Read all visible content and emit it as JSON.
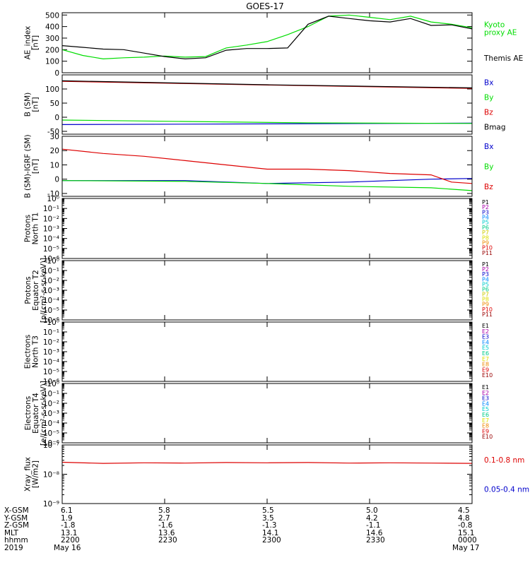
{
  "title": "GOES-17",
  "chart_data": [
    {
      "type": "line",
      "ylabel": [
        "AE_index",
        "[nT]"
      ],
      "ylim": [
        0,
        520
      ],
      "yticks": [
        0,
        100,
        200,
        300,
        400,
        500
      ],
      "log": false,
      "series": [
        {
          "name": "Kyoto\nproxy AE",
          "color": "#00dd00",
          "x": [
            0,
            0.05,
            0.1,
            0.15,
            0.2,
            0.25,
            0.3,
            0.35,
            0.4,
            0.45,
            0.5,
            0.55,
            0.6,
            0.65,
            0.7,
            0.75,
            0.8,
            0.85,
            0.9,
            0.95,
            1
          ],
          "y": [
            200,
            150,
            120,
            130,
            135,
            145,
            135,
            140,
            215,
            240,
            270,
            330,
            400,
            490,
            500,
            480,
            460,
            490,
            440,
            420,
            390
          ]
        },
        {
          "name": "Themis AE",
          "color": "#000000",
          "x": [
            0,
            0.05,
            0.1,
            0.15,
            0.2,
            0.25,
            0.3,
            0.35,
            0.4,
            0.45,
            0.5,
            0.55,
            0.6,
            0.65,
            0.7,
            0.75,
            0.8,
            0.85,
            0.9,
            0.95,
            1
          ],
          "y": [
            235,
            220,
            205,
            200,
            170,
            140,
            120,
            130,
            195,
            210,
            210,
            215,
            420,
            490,
            470,
            450,
            440,
            470,
            410,
            415,
            380
          ]
        }
      ]
    },
    {
      "type": "line",
      "ylabel": [
        "B (SM)",
        "[nT]"
      ],
      "ylim": [
        -60,
        150
      ],
      "yticks": [
        -50,
        0,
        50,
        100
      ],
      "log": false,
      "series": [
        {
          "name": "Bx",
          "color": "#0000cc",
          "x": [
            0,
            1
          ],
          "y": [
            -26,
            -21
          ]
        },
        {
          "name": "By",
          "color": "#00dd00",
          "x": [
            0,
            0.3,
            0.6,
            1
          ],
          "y": [
            -10,
            -15,
            -20,
            -22
          ]
        },
        {
          "name": "Bz",
          "color": "#dd0000",
          "x": [
            0,
            0.5,
            1
          ],
          "y": [
            127,
            114,
            102
          ]
        },
        {
          "name": "Bmag",
          "color": "#000000",
          "x": [
            0,
            0.5,
            1
          ],
          "y": [
            129,
            115,
            104
          ]
        }
      ]
    },
    {
      "type": "line",
      "ylabel": [
        "B (SM)-IGRF (SM)",
        "[nT]"
      ],
      "ylim": [
        -12,
        30
      ],
      "yticks": [
        -10,
        0,
        10,
        20,
        30
      ],
      "log": false,
      "series": [
        {
          "name": "Bx",
          "color": "#0000cc",
          "x": [
            0,
            0.3,
            0.5,
            0.7,
            0.9,
            1
          ],
          "y": [
            -1,
            -1,
            -3,
            -2,
            0,
            0.5
          ]
        },
        {
          "name": "By",
          "color": "#00dd00",
          "x": [
            0,
            0.3,
            0.5,
            0.7,
            0.9,
            1
          ],
          "y": [
            -1,
            -1.5,
            -3,
            -5,
            -6,
            -8
          ]
        },
        {
          "name": "Bz",
          "color": "#dd0000",
          "x": [
            0,
            0.1,
            0.2,
            0.3,
            0.4,
            0.5,
            0.6,
            0.7,
            0.8,
            0.9,
            0.95,
            1
          ],
          "y": [
            21,
            18,
            16,
            13,
            10,
            7,
            7,
            6,
            4,
            3,
            -2,
            -3
          ]
        }
      ]
    },
    {
      "type": "line",
      "ylabel": [
        "Protons",
        "North T1"
      ],
      "ylim": [
        -6,
        0
      ],
      "yticks": [
        0,
        -1,
        -2,
        -3,
        -4,
        -5,
        -6
      ],
      "log": true,
      "series": [
        {
          "name": "P1",
          "color": "#000000"
        },
        {
          "name": "P2",
          "color": "#aa00aa"
        },
        {
          "name": "P3",
          "color": "#0000cc"
        },
        {
          "name": "P4",
          "color": "#0088ff"
        },
        {
          "name": "P5",
          "color": "#00cccc"
        },
        {
          "name": "P6",
          "color": "#00cc88"
        },
        {
          "name": "P7",
          "color": "#cccc00"
        },
        {
          "name": "P8",
          "color": "#dddd00"
        },
        {
          "name": "P9",
          "color": "#ee8800"
        },
        {
          "name": "P10",
          "color": "#dd0000"
        },
        {
          "name": "P11",
          "color": "#990000"
        }
      ]
    },
    {
      "type": "line",
      "ylabel": [
        "Protons",
        "Equator T2",
        "[p/(cm²-s-sr-keV)]"
      ],
      "ylim": [
        -6,
        0
      ],
      "yticks": [
        0,
        -1,
        -2,
        -3,
        -4,
        -5,
        -6
      ],
      "log": true,
      "series": [
        {
          "name": "P1",
          "color": "#000000"
        },
        {
          "name": "P2",
          "color": "#aa00aa"
        },
        {
          "name": "P3",
          "color": "#0000cc"
        },
        {
          "name": "P4",
          "color": "#0088ff"
        },
        {
          "name": "P5",
          "color": "#00cccc"
        },
        {
          "name": "P6",
          "color": "#00cc88"
        },
        {
          "name": "P7",
          "color": "#cccc00"
        },
        {
          "name": "P8",
          "color": "#dddd00"
        },
        {
          "name": "P9",
          "color": "#ee8800"
        },
        {
          "name": "P10",
          "color": "#dd0000"
        },
        {
          "name": "P11",
          "color": "#990000"
        }
      ]
    },
    {
      "type": "line",
      "ylabel": [
        "Electrons",
        "North T3"
      ],
      "ylim": [
        -6,
        0
      ],
      "yticks": [
        0,
        -1,
        -2,
        -3,
        -4,
        -5,
        -6
      ],
      "log": true,
      "series": [
        {
          "name": "E1",
          "color": "#000000"
        },
        {
          "name": "E2",
          "color": "#aa00aa"
        },
        {
          "name": "E3",
          "color": "#0000cc"
        },
        {
          "name": "E4",
          "color": "#0088ff"
        },
        {
          "name": "E5",
          "color": "#00cccc"
        },
        {
          "name": "E6",
          "color": "#00cc88"
        },
        {
          "name": "E7",
          "color": "#dddd00"
        },
        {
          "name": "E8",
          "color": "#ee8800"
        },
        {
          "name": "E9",
          "color": "#dd0000"
        },
        {
          "name": "E10",
          "color": "#990000"
        }
      ]
    },
    {
      "type": "line",
      "ylabel": [
        "Electrons",
        "Equator T4",
        "[e/(cm²-s-sr-keV)]"
      ],
      "ylim": [
        -6,
        0
      ],
      "yticks": [
        0,
        -1,
        -2,
        -3,
        -4,
        -5,
        -6
      ],
      "log": true,
      "series": [
        {
          "name": "E1",
          "color": "#000000"
        },
        {
          "name": "E2",
          "color": "#aa00aa"
        },
        {
          "name": "E3",
          "color": "#0000cc"
        },
        {
          "name": "E4",
          "color": "#0088ff"
        },
        {
          "name": "E5",
          "color": "#00cccc"
        },
        {
          "name": "E6",
          "color": "#00cc88"
        },
        {
          "name": "E7",
          "color": "#dddd00"
        },
        {
          "name": "E8",
          "color": "#ee8800"
        },
        {
          "name": "E9",
          "color": "#dd0000"
        },
        {
          "name": "E10",
          "color": "#990000"
        }
      ]
    },
    {
      "type": "line",
      "ylabel": [
        "Xray_flux",
        "[W/m2]"
      ],
      "ylim": [
        -9,
        -7
      ],
      "yticks": [
        -7,
        -8,
        -9
      ],
      "log": true,
      "series": [
        {
          "name": "0.1-0.8 nm",
          "color": "#dd0000",
          "x": [
            0,
            0.1,
            0.2,
            0.3,
            0.4,
            0.5,
            0.6,
            0.7,
            0.8,
            0.9,
            1
          ],
          "y": [
            -7.59,
            -7.63,
            -7.61,
            -7.62,
            -7.6,
            -7.61,
            -7.6,
            -7.62,
            -7.61,
            -7.62,
            -7.63
          ]
        },
        {
          "name": "0.05-0.4 nm",
          "color": "#0000cc",
          "x": [],
          "y": []
        }
      ]
    }
  ],
  "ephemeris": {
    "labels": [
      "X-GSM",
      "Y-GSM",
      "Z-GSM",
      "MLT",
      "hhmm",
      "2019"
    ],
    "columns": [
      [
        "6.1",
        "1.9",
        "-1.8",
        "13.1",
        "2200",
        "May 16"
      ],
      [
        "5.8",
        "2.7",
        "-1.6",
        "13.6",
        "2230",
        ""
      ],
      [
        "5.5",
        "3.5",
        "-1.3",
        "14.1",
        "2300",
        ""
      ],
      [
        "5.0",
        "4.2",
        "-1.1",
        "14.6",
        "2330",
        ""
      ],
      [
        "4.5",
        "4.8",
        "-0.8",
        "15.1",
        "0000",
        "May 17"
      ]
    ]
  }
}
